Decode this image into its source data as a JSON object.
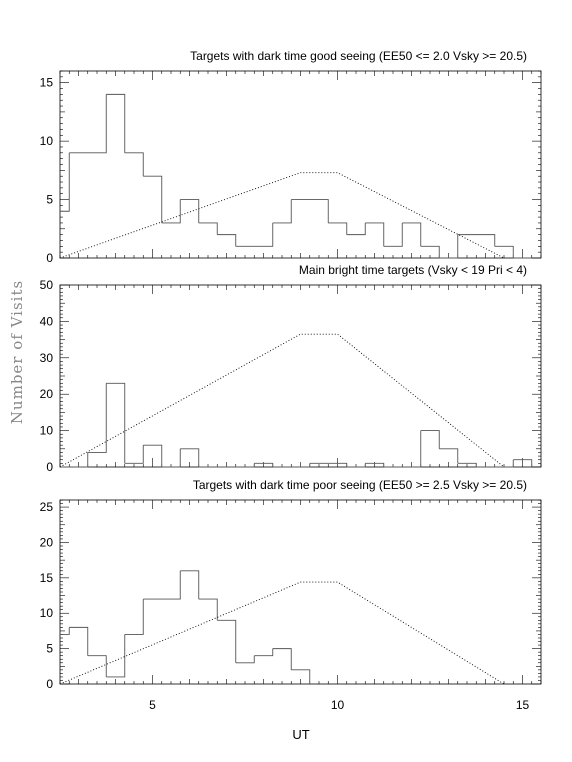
{
  "figure": {
    "ylabel": "Number of Visits",
    "xlabel": "UT"
  },
  "chart_data": [
    {
      "type": "histogram",
      "title": "Targets with dark time good seeing (EE50 <= 2.0 Vsky >= 20.5)",
      "xlabel": "",
      "ylabel": "",
      "xlim": [
        2.5,
        15.5
      ],
      "ylim": [
        0,
        16
      ],
      "yticks": [
        0,
        5,
        10,
        15
      ],
      "bin_edges": [
        2.5,
        2.75,
        3.75,
        4.25,
        4.75,
        5.25,
        5.75,
        6.25,
        6.75,
        7.25,
        8.25,
        8.75,
        9.75,
        10.25,
        10.75,
        11.25,
        11.75,
        12.25,
        12.75,
        13.25,
        14.25,
        14.75,
        15.25
      ],
      "counts": [
        4,
        9,
        14,
        9,
        7,
        3,
        5,
        3,
        2,
        1,
        3,
        5,
        3,
        2,
        3,
        1,
        3,
        1,
        0,
        2,
        1,
        0
      ],
      "envelope": {
        "x": [
          2.5,
          9.0,
          10.0,
          14.5
        ],
        "y": [
          0,
          7.3,
          7.3,
          0
        ]
      }
    },
    {
      "type": "histogram",
      "title": "Main bright time targets (Vsky < 19 Pri < 4)",
      "xlabel": "",
      "ylabel": "",
      "xlim": [
        2.5,
        15.5
      ],
      "ylim": [
        0,
        50
      ],
      "yticks": [
        0,
        10,
        20,
        30,
        40,
        50
      ],
      "bin_edges": [
        2.5,
        3.25,
        3.75,
        4.25,
        4.75,
        5.25,
        5.75,
        6.25,
        6.75,
        7.75,
        8.25,
        8.75,
        9.25,
        10.25,
        10.75,
        11.25,
        11.75,
        12.25,
        12.75,
        13.25,
        13.75,
        14.25,
        14.75,
        15.25
      ],
      "counts": [
        0,
        4,
        23,
        1,
        6,
        0,
        5,
        0,
        0,
        1,
        0,
        0,
        1,
        0,
        1,
        0,
        0,
        10,
        5,
        1,
        0,
        0,
        2
      ],
      "envelope": {
        "x": [
          2.5,
          9.0,
          10.0,
          14.5
        ],
        "y": [
          0,
          36.5,
          36.5,
          0
        ]
      }
    },
    {
      "type": "histogram",
      "title": "Targets with dark time poor seeing (EE50 >= 2.5 Vsky >= 20.5)",
      "xlabel": "UT",
      "ylabel": "",
      "xlim": [
        2.5,
        15.5
      ],
      "ylim": [
        0,
        26
      ],
      "yticks": [
        0,
        5,
        10,
        15,
        20,
        25
      ],
      "xticks": [
        5,
        10,
        15
      ],
      "bin_edges": [
        2.5,
        2.75,
        3.25,
        3.75,
        4.25,
        4.75,
        5.75,
        6.25,
        6.75,
        7.25,
        7.75,
        8.25,
        8.75,
        9.25
      ],
      "counts": [
        7,
        8,
        4,
        1,
        7,
        12,
        16,
        12,
        9,
        3,
        4,
        5,
        2
      ],
      "envelope": {
        "x": [
          2.5,
          9.0,
          10.0,
          14.5
        ],
        "y": [
          0,
          14.4,
          14.4,
          0
        ]
      }
    }
  ]
}
